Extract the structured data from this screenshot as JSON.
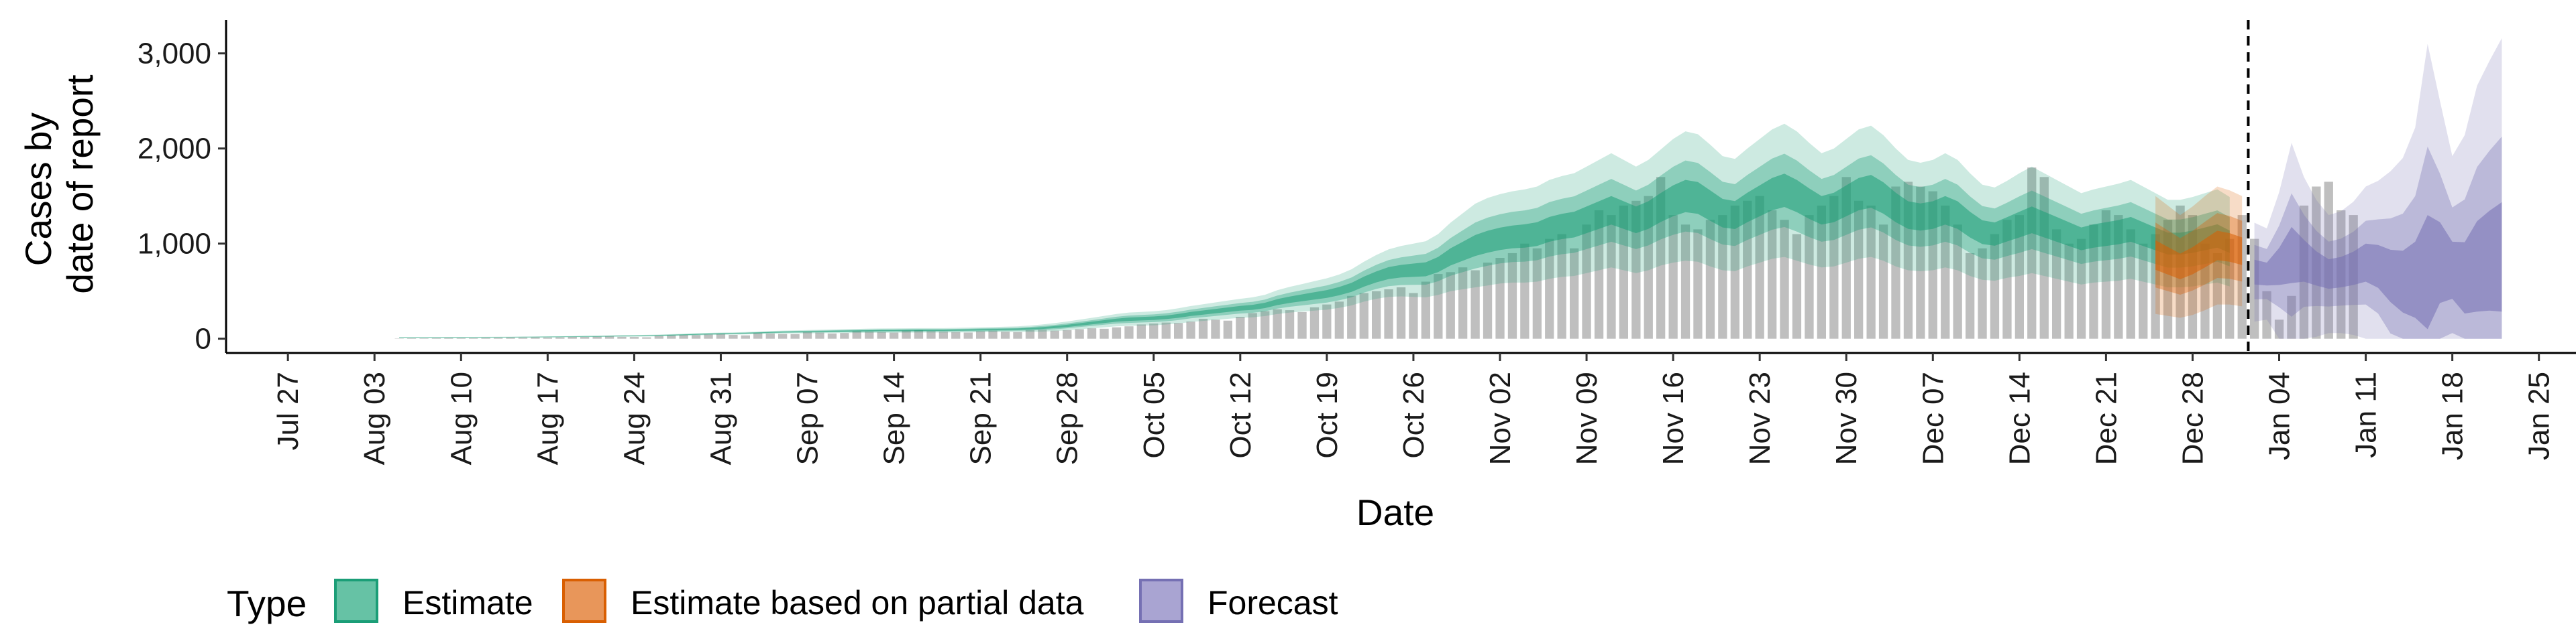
{
  "chart_data": {
    "type": "area",
    "xlabel": "Date",
    "ylabel_lines": [
      "Cases by",
      "date of report"
    ],
    "y_ticks": [
      0,
      1000,
      2000,
      3000
    ],
    "y_tick_labels": [
      "0",
      "1,000",
      "2,000",
      "3,000"
    ],
    "ylim": [
      -150,
      3350
    ],
    "x_start": "2020-07-22",
    "x_end": "2021-01-28",
    "x_tick_dates": [
      "2020-07-27",
      "2020-08-03",
      "2020-08-10",
      "2020-08-17",
      "2020-08-24",
      "2020-08-31",
      "2020-09-07",
      "2020-09-14",
      "2020-09-21",
      "2020-09-28",
      "2020-10-05",
      "2020-10-12",
      "2020-10-19",
      "2020-10-26",
      "2020-11-02",
      "2020-11-09",
      "2020-11-16",
      "2020-11-23",
      "2020-11-30",
      "2020-12-07",
      "2020-12-14",
      "2020-12-21",
      "2020-12-28",
      "2021-01-04",
      "2021-01-11",
      "2021-01-18",
      "2021-01-25"
    ],
    "x_tick_labels": [
      "Jul 27",
      "Aug 03",
      "Aug 10",
      "Aug 17",
      "Aug 24",
      "Aug 31",
      "Sep 07",
      "Sep 14",
      "Sep 21",
      "Sep 28",
      "Oct 05",
      "Oct 12",
      "Oct 19",
      "Oct 26",
      "Nov 02",
      "Nov 09",
      "Nov 16",
      "Nov 23",
      "Nov 30",
      "Dec 07",
      "Dec 14",
      "Dec 21",
      "Dec 28",
      "Jan 04",
      "Jan 11",
      "Jan 18",
      "Jan 25"
    ],
    "forecast_line_date": "2021-01-01",
    "legend": {
      "title": "Type",
      "placement": "bottom-left",
      "items": [
        {
          "label": "Estimate",
          "fill": "#66c2a5",
          "stroke": "#1b9e77"
        },
        {
          "label": "Estimate based on partial data",
          "fill": "#e8965a",
          "stroke": "#d95f02"
        },
        {
          "label": "Forecast",
          "fill": "#a9a4d2",
          "stroke": "#7570b3"
        }
      ]
    },
    "colors": {
      "bars": "#a6a6a6",
      "estimate": "#1b9e77",
      "partial": "#d95f02",
      "forecast": "#7570b3"
    },
    "observed_cases": {
      "start_date": "2020-08-05",
      "values": [
        3,
        5,
        4,
        6,
        8,
        7,
        6,
        9,
        10,
        12,
        11,
        14,
        13,
        15,
        20,
        18,
        22,
        25,
        20,
        18,
        15,
        30,
        35,
        40,
        38,
        45,
        50,
        40,
        35,
        60,
        55,
        50,
        48,
        70,
        65,
        55,
        60,
        80,
        75,
        70,
        65,
        85,
        90,
        80,
        75,
        70,
        65,
        80,
        85,
        75,
        70,
        90,
        95,
        85,
        90,
        100,
        110,
        105,
        120,
        130,
        150,
        160,
        170,
        165,
        180,
        210,
        200,
        190,
        230,
        270,
        290,
        310,
        300,
        280,
        330,
        360,
        390,
        450,
        480,
        500,
        520,
        540,
        480,
        600,
        680,
        700,
        750,
        720,
        800,
        850,
        900,
        1000,
        950,
        1050,
        1100,
        950,
        1200,
        1350,
        1300,
        1400,
        1450,
        1500,
        1700,
        1300,
        1200,
        1150,
        1250,
        1300,
        1400,
        1450,
        1500,
        1350,
        1250,
        1100,
        1300,
        1400,
        1500,
        1700,
        1450,
        1400,
        1200,
        1600,
        1650,
        1600,
        1550,
        1400,
        1200,
        900,
        950,
        1100,
        1250,
        1300,
        1800,
        1700,
        1150,
        1000,
        1050,
        1200,
        1350,
        1300,
        1150,
        1000,
        1100,
        1250,
        1400,
        1300,
        1000,
        900,
        1050,
        1300,
        1050,
        500,
        200,
        450,
        1400,
        1600,
        1650,
        1350,
        1300
      ]
    },
    "estimate": {
      "start_date": "2020-08-05",
      "end_date": "2020-12-24",
      "median": [
        12,
        12,
        12,
        12,
        12,
        13,
        13,
        14,
        15,
        16,
        17,
        18,
        19,
        20,
        22,
        24,
        25,
        27,
        29,
        30,
        32,
        35,
        38,
        42,
        46,
        50,
        53,
        55,
        58,
        62,
        66,
        70,
        72,
        74,
        76,
        78,
        80,
        82,
        84,
        85,
        86,
        87,
        88,
        88,
        88,
        90,
        92,
        94,
        96,
        98,
        100,
        105,
        112,
        122,
        135,
        150,
        165,
        180,
        195,
        205,
        210,
        215,
        225,
        240,
        260,
        275,
        290,
        305,
        320,
        330,
        350,
        385,
        410,
        430,
        450,
        470,
        500,
        540,
        600,
        650,
        690,
        710,
        720,
        730,
        780,
        860,
        920,
        980,
        1020,
        1050,
        1070,
        1080,
        1100,
        1150,
        1180,
        1200,
        1250,
        1300,
        1350,
        1300,
        1250,
        1300,
        1380,
        1450,
        1500,
        1480,
        1400,
        1320,
        1300,
        1380,
        1450,
        1520,
        1560,
        1500,
        1420,
        1350,
        1380,
        1450,
        1520,
        1550,
        1480,
        1380,
        1300,
        1280,
        1300,
        1350,
        1300,
        1200,
        1120,
        1100,
        1150,
        1200,
        1250,
        1200,
        1150,
        1100,
        1050,
        1080,
        1100,
        1120,
        1150,
        1100,
        1050,
        1000,
        1000,
        1020,
        1050,
        1080,
        1020
      ],
      "spread": [
        6,
        6,
        6,
        6,
        6,
        6,
        6,
        6,
        6,
        6,
        6,
        6,
        6,
        6,
        6,
        7,
        7,
        7,
        8,
        8,
        9,
        9,
        10,
        10,
        11,
        11,
        12,
        12,
        12,
        13,
        14,
        15,
        16,
        17,
        18,
        19,
        20,
        21,
        22,
        23,
        23,
        23,
        23,
        23,
        23,
        24,
        25,
        26,
        27,
        28,
        30,
        34,
        38,
        42,
        46,
        50,
        55,
        60,
        65,
        70,
        72,
        74,
        76,
        80,
        84,
        88,
        92,
        96,
        100,
        105,
        112,
        125,
        135,
        145,
        155,
        165,
        175,
        190,
        210,
        230,
        250,
        265,
        280,
        295,
        320,
        360,
        400,
        440,
        460,
        470,
        480,
        490,
        500,
        520,
        530,
        540,
        560,
        580,
        600,
        580,
        560,
        580,
        610,
        650,
        680,
        670,
        640,
        600,
        590,
        620,
        650,
        680,
        700,
        680,
        640,
        600,
        620,
        650,
        680,
        690,
        660,
        620,
        580,
        570,
        580,
        600,
        580,
        540,
        500,
        490,
        510,
        540,
        560,
        540,
        520,
        500,
        480,
        490,
        500,
        510,
        520,
        500,
        480,
        460,
        460,
        470,
        480,
        490,
        470
      ]
    },
    "partial": {
      "start_date": "2020-12-25",
      "end_date": "2021-01-01",
      "median": [
        880,
        820,
        760,
        820,
        900,
        980,
        960,
        920
      ],
      "spread": [
        620,
        580,
        540,
        570,
        600,
        620,
        600,
        580
      ]
    },
    "forecast": {
      "start_date": "2021-01-02",
      "end_date": "2021-01-22",
      "median": [
        700,
        680,
        760,
        880,
        820,
        740,
        680,
        700,
        740,
        800,
        760,
        660,
        600,
        620,
        700,
        800,
        720,
        640,
        760,
        820,
        860
      ],
      "spread": [
        520,
        480,
        780,
        1180,
        880,
        720,
        620,
        640,
        700,
        800,
        900,
        1100,
        1300,
        1600,
        2400,
        1700,
        1200,
        1500,
        1900,
        2100,
        2300
      ]
    }
  }
}
